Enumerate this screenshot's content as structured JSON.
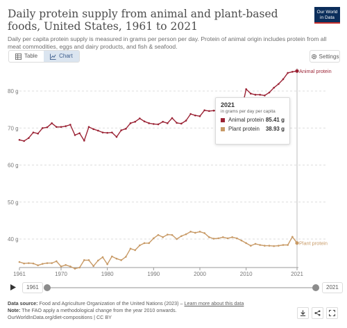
{
  "header": {
    "title": "Daily protein supply from animal and plant-based foods, United States, 1961 to 2021",
    "subtitle": "Daily per capita protein supply is measured in grams per person per day. Protein of animal origin includes protein from all meat commodities, eggs and dairy products, and fish & seafood.",
    "logo_line1": "Our World",
    "logo_line2": "in Data"
  },
  "tabs": [
    {
      "label": "Table",
      "icon": "table-icon"
    },
    {
      "label": "Chart",
      "icon": "line-chart-icon",
      "active": true
    }
  ],
  "settings_label": "Settings",
  "tooltip": {
    "year": "2021",
    "unit": "in grams per day per capita",
    "rows": [
      {
        "name": "Animal protein",
        "value": "85.41 g"
      },
      {
        "name": "Plant protein",
        "value": "38.93 g"
      }
    ]
  },
  "timeline": {
    "start_label": "1961",
    "end_label": "2021",
    "start_fraction": 0,
    "end_fraction": 1
  },
  "footer": {
    "source_label": "Data source:",
    "source_text": "Food and Agriculture Organization of the United Nations (2023)",
    "source_sep": " – ",
    "learn_more": "Learn more about this data",
    "note_label": "Note:",
    "note_text": "The FAO apply a methodological change from the year 2010 onwards.",
    "url": "OurWorldInData.org/diet-compositions | CC BY"
  },
  "actions": [
    "download-icon",
    "share-icon",
    "fullscreen-icon"
  ],
  "colors": {
    "animal": "#9b2335",
    "plant": "#c89a66",
    "logo_bg": "#0b2e5b",
    "logo_accent": "#c9302c"
  },
  "chart_data": {
    "type": "line",
    "x": [
      1961,
      1962,
      1963,
      1964,
      1965,
      1966,
      1967,
      1968,
      1969,
      1970,
      1971,
      1972,
      1973,
      1974,
      1975,
      1976,
      1977,
      1978,
      1979,
      1980,
      1981,
      1982,
      1983,
      1984,
      1985,
      1986,
      1987,
      1988,
      1989,
      1990,
      1991,
      1992,
      1993,
      1994,
      1995,
      1996,
      1997,
      1998,
      1999,
      2000,
      2001,
      2002,
      2003,
      2004,
      2005,
      2006,
      2007,
      2008,
      2009,
      2010,
      2011,
      2012,
      2013,
      2014,
      2015,
      2016,
      2017,
      2018,
      2019,
      2020,
      2021
    ],
    "series": [
      {
        "name": "Animal protein",
        "values": [
          66.8,
          66.5,
          67.3,
          68.8,
          68.5,
          70.0,
          70.2,
          71.3,
          70.3,
          70.3,
          70.5,
          70.9,
          68.1,
          68.6,
          66.6,
          70.3,
          69.7,
          69.3,
          68.8,
          68.7,
          68.8,
          67.6,
          69.4,
          69.8,
          71.3,
          71.7,
          72.6,
          71.8,
          71.3,
          71.1,
          71.0,
          71.7,
          71.3,
          72.7,
          71.4,
          71.2,
          72.0,
          73.8,
          73.4,
          73.2,
          74.8,
          74.6,
          74.7,
          74.7,
          75.3,
          75.5,
          75.3,
          74.6,
          74.9,
          80.5,
          79.3,
          79.0,
          79.0,
          78.8,
          79.6,
          80.9,
          81.9,
          83.2,
          84.9,
          85.2,
          85.41
        ]
      },
      {
        "name": "Plant protein",
        "values": [
          33.8,
          33.4,
          33.5,
          33.4,
          32.9,
          33.3,
          33.5,
          33.5,
          34.0,
          32.6,
          33.0,
          32.6,
          32.0,
          32.3,
          34.3,
          34.3,
          32.7,
          34.2,
          35.1,
          33.2,
          35.3,
          34.7,
          34.3,
          35.2,
          37.4,
          37.0,
          38.3,
          38.9,
          38.9,
          40.2,
          41.1,
          40.5,
          41.2,
          41.1,
          40.0,
          40.8,
          41.3,
          42.0,
          41.7,
          42.0,
          41.6,
          40.5,
          40.1,
          40.2,
          40.5,
          40.2,
          40.5,
          40.2,
          39.6,
          38.9,
          38.2,
          38.7,
          38.4,
          38.2,
          38.2,
          38.1,
          38.2,
          38.4,
          38.4,
          40.6,
          38.93
        ]
      }
    ],
    "y_ticks": [
      40,
      50,
      60,
      70,
      80
    ],
    "y_tick_labels": [
      "40 g",
      "50 g",
      "60 g",
      "70 g",
      "80 g"
    ],
    "x_ticks": [
      1961,
      1970,
      1980,
      1990,
      2000,
      2010,
      2021
    ],
    "ylim": [
      30,
      87
    ],
    "xlim": [
      1961,
      2021
    ],
    "grid": "horizontal dashed",
    "legend": "inline end labels"
  }
}
